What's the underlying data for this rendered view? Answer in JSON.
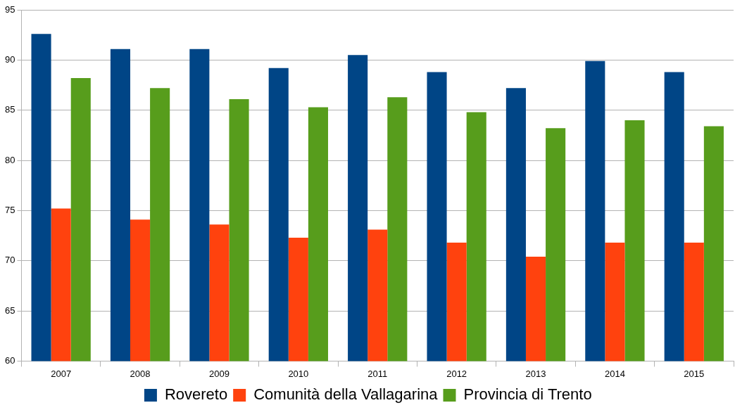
{
  "chart_data": {
    "type": "bar",
    "categories": [
      "2007",
      "2008",
      "2009",
      "2010",
      "2011",
      "2012",
      "2013",
      "2014",
      "2015"
    ],
    "series": [
      {
        "name": "Rovereto",
        "color": "#004586",
        "values": [
          92.6,
          91.1,
          91.1,
          89.2,
          90.5,
          88.8,
          87.2,
          89.9,
          88.8
        ]
      },
      {
        "name": "Comunità della Vallagarina",
        "color": "#ff420e",
        "values": [
          75.2,
          74.1,
          73.6,
          72.3,
          73.1,
          71.8,
          70.4,
          71.8,
          71.8
        ]
      },
      {
        "name": "Provincia di Trento",
        "color": "#579d1c",
        "values": [
          88.2,
          87.2,
          86.1,
          85.3,
          86.3,
          84.8,
          83.2,
          84.0,
          83.4
        ]
      }
    ],
    "ylim": [
      60,
      95
    ],
    "yticks": [
      60,
      65,
      70,
      75,
      80,
      85,
      90,
      95
    ],
    "grid": "y",
    "legend": "bottom"
  }
}
